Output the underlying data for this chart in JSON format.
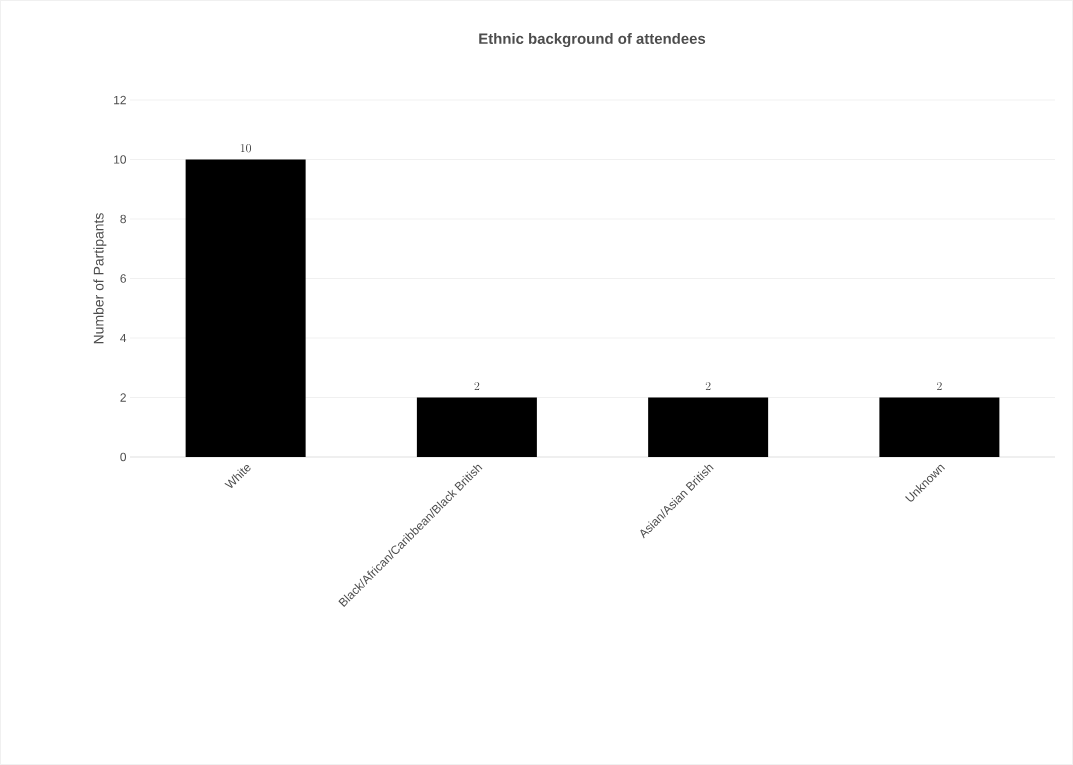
{
  "chart_data": {
    "type": "bar",
    "title": "Ethnic background of attendees",
    "ylabel": "Number of Partipants",
    "categories": [
      "White",
      "Black/African/Caribbean/Black British",
      "Asian/Asian British",
      "Unknown"
    ],
    "values": [
      10,
      2,
      2,
      2
    ],
    "color": "#000000",
    "ylim": [
      0,
      12
    ],
    "yticks": [
      0,
      2,
      4,
      6,
      8,
      10,
      12
    ],
    "grid": "y",
    "data_labels": true
  }
}
